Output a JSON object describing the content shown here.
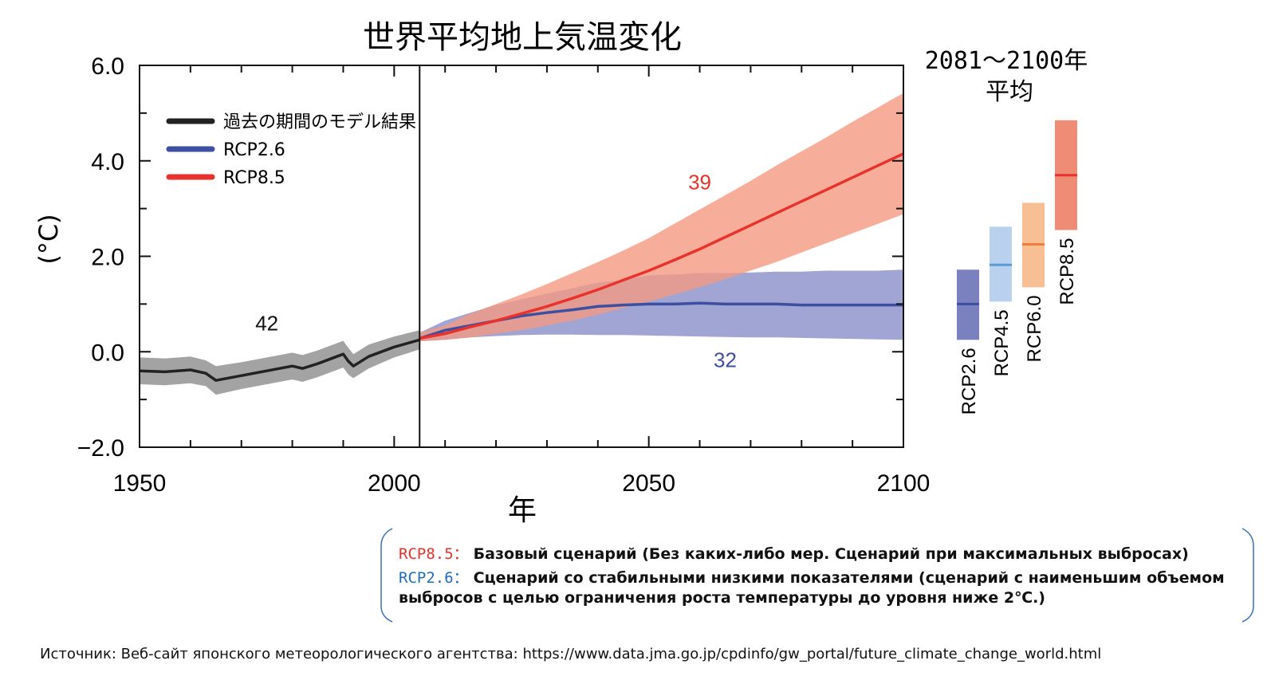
{
  "chart_data": {
    "type": "line",
    "title": "世界平均地上気温変化",
    "xlabel": "年",
    "ylabel": "(°C)",
    "xlim": [
      1950,
      2100
    ],
    "ylim": [
      -2.0,
      6.0
    ],
    "xticks": [
      "1950",
      "2000",
      "2050",
      "2100"
    ],
    "yticks": [
      "−2.0",
      "0.0",
      "2.0",
      "4.0",
      "6.0"
    ],
    "grid": false,
    "legend_position": "top-left",
    "divider_year": 2005,
    "series": [
      {
        "name": "過去の期間のモデル結果",
        "color": "#222222",
        "band_color": "#8c8c8c",
        "x": [
          1950,
          1955,
          1960,
          1963,
          1965,
          1970,
          1975,
          1980,
          1982,
          1985,
          1990,
          1991,
          1992,
          1995,
          2000,
          2005
        ],
        "values": [
          -0.4,
          -0.42,
          -0.38,
          -0.45,
          -0.6,
          -0.5,
          -0.4,
          -0.3,
          -0.35,
          -0.25,
          -0.05,
          -0.2,
          -0.3,
          -0.1,
          0.1,
          0.25
        ],
        "lower": [
          -0.68,
          -0.7,
          -0.66,
          -0.72,
          -0.9,
          -0.78,
          -0.68,
          -0.58,
          -0.63,
          -0.53,
          -0.33,
          -0.48,
          -0.55,
          -0.35,
          -0.12,
          0.05
        ],
        "upper": [
          -0.12,
          -0.14,
          -0.1,
          -0.18,
          -0.3,
          -0.22,
          -0.12,
          -0.02,
          -0.07,
          0.03,
          0.23,
          0.08,
          -0.05,
          0.15,
          0.32,
          0.45
        ],
        "count_label": "42"
      },
      {
        "name": "RCP2.6",
        "color": "#3c4fa0",
        "band_color": "#8f95cc",
        "x": [
          2005,
          2010,
          2015,
          2020,
          2025,
          2030,
          2035,
          2040,
          2045,
          2050,
          2055,
          2060,
          2065,
          2070,
          2075,
          2080,
          2085,
          2090,
          2095,
          2100
        ],
        "values": [
          0.28,
          0.45,
          0.55,
          0.65,
          0.75,
          0.82,
          0.88,
          0.95,
          0.98,
          1.0,
          1.0,
          1.02,
          1.0,
          1.0,
          1.0,
          0.98,
          0.98,
          0.98,
          0.98,
          0.98
        ],
        "lower": [
          0.22,
          0.25,
          0.3,
          0.33,
          0.35,
          0.36,
          0.36,
          0.35,
          0.35,
          0.34,
          0.33,
          0.32,
          0.31,
          0.3,
          0.3,
          0.29,
          0.28,
          0.27,
          0.26,
          0.25
        ],
        "upper": [
          0.4,
          0.65,
          0.82,
          0.98,
          1.1,
          1.22,
          1.33,
          1.45,
          1.5,
          1.6,
          1.62,
          1.65,
          1.65,
          1.66,
          1.68,
          1.68,
          1.7,
          1.7,
          1.7,
          1.72
        ],
        "count_label": "32"
      },
      {
        "name": "RCP8.5",
        "color": "#e8322b",
        "band_color": "#f49a82",
        "x": [
          2005,
          2010,
          2015,
          2020,
          2025,
          2030,
          2035,
          2040,
          2045,
          2050,
          2055,
          2060,
          2065,
          2070,
          2075,
          2080,
          2085,
          2090,
          2095,
          2100
        ],
        "values": [
          0.28,
          0.38,
          0.52,
          0.65,
          0.8,
          0.95,
          1.12,
          1.3,
          1.5,
          1.7,
          1.92,
          2.15,
          2.4,
          2.65,
          2.9,
          3.15,
          3.4,
          3.65,
          3.9,
          4.15
        ],
        "lower": [
          0.22,
          0.25,
          0.3,
          0.38,
          0.45,
          0.55,
          0.65,
          0.78,
          0.92,
          1.05,
          1.2,
          1.35,
          1.52,
          1.7,
          1.88,
          2.08,
          2.28,
          2.48,
          2.68,
          2.88
        ],
        "upper": [
          0.4,
          0.55,
          0.8,
          1.0,
          1.2,
          1.42,
          1.65,
          1.88,
          2.12,
          2.38,
          2.68,
          2.98,
          3.28,
          3.58,
          3.9,
          4.2,
          4.5,
          4.82,
          5.12,
          5.42
        ],
        "count_label": "39"
      }
    ],
    "side_bars": {
      "title_line1": "2081〜2100年",
      "title_line2": "平均",
      "bars": [
        {
          "label": "RCP2.6",
          "low": 0.25,
          "mid": 1.0,
          "high": 1.72,
          "color": "#7b80bf",
          "line_color": "#3c4fa0"
        },
        {
          "label": "RCP4.5",
          "low": 1.05,
          "mid": 1.82,
          "high": 2.62,
          "color": "#b9d1ef",
          "line_color": "#5a9ad6"
        },
        {
          "label": "RCP6.0",
          "low": 1.35,
          "mid": 2.25,
          "high": 3.12,
          "color": "#f7bf93",
          "line_color": "#ee7c3a"
        },
        {
          "label": "RCP8.5",
          "low": 2.55,
          "mid": 3.7,
          "high": 4.85,
          "color": "#ef8c76",
          "line_color": "#e8322b"
        }
      ]
    }
  },
  "notes": {
    "rcp85_key": "RCP8.5：",
    "rcp85_key_color": "#e8322b",
    "rcp85_text": "Базовый сценарий (Без каких-либо мер. Сценарий при максимальных выбросах)",
    "rcp26_key": "RCP2.6：",
    "rcp26_key_color": "#1f6cc4",
    "rcp26_text": "Сценарий со стабильными низкими показателями (сценарий с наименьшим объемом",
    "rcp26_text_cont": "выбросов с целью ограничения роста температуры до уровня ниже 2℃.)"
  },
  "source": "Источник: Веб-сайт японского метеорологического агентства: https://www.data.jma.go.jp/cpdinfo/gw_portal/future_climate_change_world.html"
}
